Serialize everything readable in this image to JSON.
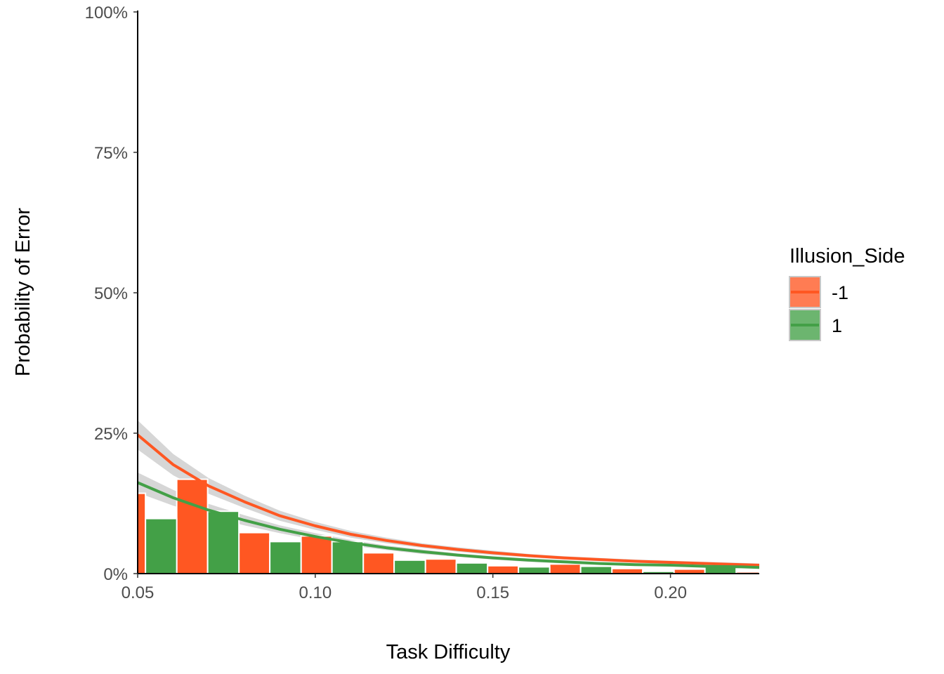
{
  "chart_data": {
    "type": "bar",
    "xlabel": "Task Difficulty",
    "ylabel": "Probability of Error",
    "xlim": [
      0.05,
      0.225
    ],
    "ylim": [
      0,
      1
    ],
    "x_ticks": [
      {
        "value": 0.05,
        "label": "0.05"
      },
      {
        "value": 0.1,
        "label": "0.10"
      },
      {
        "value": 0.15,
        "label": "0.15"
      },
      {
        "value": 0.2,
        "label": "0.20"
      }
    ],
    "y_ticks": [
      {
        "value": 0,
        "label": "0%"
      },
      {
        "value": 0.25,
        "label": "25%"
      },
      {
        "value": 0.5,
        "label": "50%"
      },
      {
        "value": 0.75,
        "label": "75%"
      },
      {
        "value": 1,
        "label": "100%"
      }
    ],
    "grid": false,
    "legend": {
      "title": "Illusion_Side",
      "placement": "right"
    },
    "series": [
      {
        "name": "-1",
        "color": "#FF5722",
        "bars": [
          {
            "x0": 0.0435,
            "x1": 0.0522,
            "y": 0.143
          },
          {
            "x0": 0.061,
            "x1": 0.0697,
            "y": 0.168
          },
          {
            "x0": 0.0785,
            "x1": 0.0872,
            "y": 0.073
          },
          {
            "x0": 0.096,
            "x1": 0.1047,
            "y": 0.067
          },
          {
            "x0": 0.1135,
            "x1": 0.1222,
            "y": 0.037
          },
          {
            "x0": 0.131,
            "x1": 0.1397,
            "y": 0.026
          },
          {
            "x0": 0.1485,
            "x1": 0.1572,
            "y": 0.014
          },
          {
            "x0": 0.166,
            "x1": 0.1747,
            "y": 0.017
          },
          {
            "x0": 0.1835,
            "x1": 0.1922,
            "y": 0.009
          },
          {
            "x0": 0.201,
            "x1": 0.2097,
            "y": 0.008
          },
          {
            "x0": 0.2185,
            "x1": 0.225,
            "y": 0.003
          }
        ],
        "fit": {
          "x": [
            0.05,
            0.06,
            0.07,
            0.08,
            0.09,
            0.1,
            0.11,
            0.12,
            0.13,
            0.14,
            0.15,
            0.16,
            0.17,
            0.18,
            0.19,
            0.2,
            0.21,
            0.22,
            0.225
          ],
          "y": [
            0.247,
            0.194,
            0.156,
            0.128,
            0.103,
            0.085,
            0.07,
            0.059,
            0.05,
            0.043,
            0.037,
            0.032,
            0.028,
            0.025,
            0.022,
            0.02,
            0.018,
            0.016,
            0.015
          ],
          "ci_halfwidth": [
            0.026,
            0.019,
            0.014,
            0.011,
            0.009,
            0.007,
            0.006,
            0.005,
            0.004,
            0.004,
            0.004,
            0.003,
            0.003,
            0.003,
            0.003,
            0.003,
            0.003,
            0.003,
            0.003
          ]
        }
      },
      {
        "name": "1",
        "color": "#43A047",
        "bars": [
          {
            "x0": 0.0522,
            "x1": 0.061,
            "y": 0.098
          },
          {
            "x0": 0.0697,
            "x1": 0.0785,
            "y": 0.111
          },
          {
            "x0": 0.0872,
            "x1": 0.096,
            "y": 0.057
          },
          {
            "x0": 0.1047,
            "x1": 0.1135,
            "y": 0.057
          },
          {
            "x0": 0.1222,
            "x1": 0.131,
            "y": 0.024
          },
          {
            "x0": 0.1397,
            "x1": 0.1485,
            "y": 0.019
          },
          {
            "x0": 0.1572,
            "x1": 0.166,
            "y": 0.012
          },
          {
            "x0": 0.1747,
            "x1": 0.1835,
            "y": 0.013
          },
          {
            "x0": 0.1922,
            "x1": 0.201,
            "y": 0.004
          },
          {
            "x0": 0.2097,
            "x1": 0.2185,
            "y": 0.015
          }
        ],
        "fit": {
          "x": [
            0.05,
            0.06,
            0.07,
            0.08,
            0.09,
            0.1,
            0.11,
            0.12,
            0.13,
            0.14,
            0.15,
            0.16,
            0.17,
            0.18,
            0.19,
            0.2,
            0.21,
            0.22,
            0.225
          ],
          "y": [
            0.162,
            0.135,
            0.113,
            0.095,
            0.079,
            0.066,
            0.055,
            0.046,
            0.039,
            0.033,
            0.028,
            0.024,
            0.021,
            0.018,
            0.016,
            0.015,
            0.013,
            0.012,
            0.011
          ],
          "ci_halfwidth": [
            0.018,
            0.014,
            0.011,
            0.009,
            0.007,
            0.006,
            0.005,
            0.004,
            0.004,
            0.003,
            0.003,
            0.003,
            0.003,
            0.002,
            0.002,
            0.002,
            0.002,
            0.002,
            0.002
          ]
        }
      }
    ]
  }
}
